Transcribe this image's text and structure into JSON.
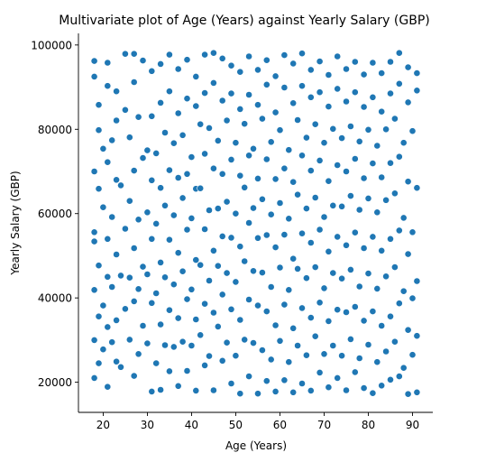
{
  "chart_data": {
    "type": "scatter",
    "title": "Multivariate plot of Age (Years) against Yearly Salary (GBP)",
    "xlabel": "Age (Years)",
    "ylabel": "Yearly Salary (GBP)",
    "xlim": [
      14.4,
      94.6
    ],
    "ylim": [
      12850,
      102750
    ],
    "xticks": [
      20,
      30,
      40,
      50,
      60,
      70,
      80,
      90
    ],
    "yticks": [
      20000,
      40000,
      60000,
      80000,
      100000
    ],
    "xtick_labels": [
      "20",
      "30",
      "40",
      "50",
      "60",
      "70",
      "80",
      "90"
    ],
    "ytick_labels": [
      "20000",
      "40000",
      "60000",
      "80000",
      "100000"
    ],
    "grid": false,
    "legend": "none",
    "marker_color": "#1f77b4",
    "points": [
      [
        18,
        96200
      ],
      [
        18,
        92500
      ],
      [
        19,
        85800
      ],
      [
        19,
        79800
      ],
      [
        18,
        70000
      ],
      [
        19,
        65900
      ],
      [
        18,
        55600
      ],
      [
        18,
        53400
      ],
      [
        19,
        47700
      ],
      [
        18,
        41900
      ],
      [
        19,
        35600
      ],
      [
        18,
        30000
      ],
      [
        19,
        24500
      ],
      [
        18,
        21000
      ],
      [
        21,
        95800
      ],
      [
        21,
        90300
      ],
      [
        20,
        75400
      ],
      [
        21,
        72200
      ],
      [
        20,
        61500
      ],
      [
        21,
        54000
      ],
      [
        21,
        45000
      ],
      [
        20,
        38200
      ],
      [
        21,
        33100
      ],
      [
        20,
        27800
      ],
      [
        21,
        18900
      ],
      [
        23,
        89000
      ],
      [
        23,
        82100
      ],
      [
        22,
        77400
      ],
      [
        23,
        68000
      ],
      [
        22,
        59200
      ],
      [
        23,
        50300
      ],
      [
        22,
        42600
      ],
      [
        23,
        34700
      ],
      [
        22,
        29500
      ],
      [
        23,
        24900
      ],
      [
        25,
        97900
      ],
      [
        25,
        84600
      ],
      [
        24,
        66700
      ],
      [
        25,
        56400
      ],
      [
        24,
        45300
      ],
      [
        25,
        37400
      ],
      [
        24,
        23600
      ],
      [
        27,
        97900
      ],
      [
        27,
        91200
      ],
      [
        26,
        78100
      ],
      [
        27,
        70200
      ],
      [
        26,
        63000
      ],
      [
        27,
        51800
      ],
      [
        26,
        44800
      ],
      [
        27,
        39200
      ],
      [
        26,
        30100
      ],
      [
        27,
        21500
      ],
      [
        29,
        96300
      ],
      [
        28,
        82900
      ],
      [
        29,
        73200
      ],
      [
        28,
        58600
      ],
      [
        29,
        47400
      ],
      [
        28,
        42100
      ],
      [
        29,
        33400
      ],
      [
        28,
        26700
      ],
      [
        31,
        93800
      ],
      [
        31,
        83100
      ],
      [
        30,
        75000
      ],
      [
        31,
        67900
      ],
      [
        30,
        60300
      ],
      [
        31,
        54000
      ],
      [
        30,
        45600
      ],
      [
        31,
        38800
      ],
      [
        30,
        29200
      ],
      [
        31,
        17800
      ],
      [
        33,
        95500
      ],
      [
        33,
        86300
      ],
      [
        32,
        74300
      ],
      [
        33,
        66100
      ],
      [
        32,
        57600
      ],
      [
        33,
        48400
      ],
      [
        32,
        41100
      ],
      [
        33,
        33700
      ],
      [
        32,
        24500
      ],
      [
        33,
        18200
      ],
      [
        35,
        97700
      ],
      [
        35,
        89000
      ],
      [
        34,
        79200
      ],
      [
        35,
        70300
      ],
      [
        34,
        61900
      ],
      [
        35,
        53800
      ],
      [
        34,
        44900
      ],
      [
        35,
        37100
      ],
      [
        34,
        28800
      ],
      [
        35,
        22600
      ],
      [
        37,
        94300
      ],
      [
        37,
        83800
      ],
      [
        36,
        76700
      ],
      [
        37,
        68500
      ],
      [
        36,
        59600
      ],
      [
        37,
        50700
      ],
      [
        36,
        43200
      ],
      [
        37,
        35200
      ],
      [
        36,
        28400
      ],
      [
        37,
        19100
      ],
      [
        39,
        96500
      ],
      [
        39,
        87300
      ],
      [
        38,
        78600
      ],
      [
        39,
        69400
      ],
      [
        38,
        63700
      ],
      [
        39,
        56200
      ],
      [
        38,
        46300
      ],
      [
        39,
        39700
      ],
      [
        38,
        29600
      ],
      [
        39,
        22700
      ],
      [
        41,
        92500
      ],
      [
        41,
        85500
      ],
      [
        40,
        73400
      ],
      [
        41,
        65900
      ],
      [
        40,
        58900
      ],
      [
        41,
        49000
      ],
      [
        40,
        42000
      ],
      [
        41,
        34900
      ],
      [
        40,
        28700
      ],
      [
        41,
        18000
      ],
      [
        43,
        97700
      ],
      [
        43,
        88600
      ],
      [
        42,
        81200
      ],
      [
        43,
        74200
      ],
      [
        42,
        66000
      ],
      [
        43,
        56300
      ],
      [
        42,
        47800
      ],
      [
        43,
        38600
      ],
      [
        42,
        31200
      ],
      [
        43,
        24000
      ],
      [
        45,
        98100
      ],
      [
        45,
        91000
      ],
      [
        44,
        80300
      ],
      [
        45,
        70700
      ],
      [
        44,
        60800
      ],
      [
        45,
        51200
      ],
      [
        44,
        44100
      ],
      [
        45,
        36500
      ],
      [
        44,
        26200
      ],
      [
        45,
        18100
      ],
      [
        47,
        96800
      ],
      [
        47,
        86800
      ],
      [
        46,
        77300
      ],
      [
        47,
        69400
      ],
      [
        46,
        61200
      ],
      [
        47,
        54600
      ],
      [
        46,
        47600
      ],
      [
        47,
        40800
      ],
      [
        46,
        33200
      ],
      [
        47,
        25100
      ],
      [
        49,
        95100
      ],
      [
        49,
        88500
      ],
      [
        48,
        82100
      ],
      [
        49,
        72800
      ],
      [
        48,
        62800
      ],
      [
        49,
        54300
      ],
      [
        48,
        45900
      ],
      [
        49,
        37300
      ],
      [
        48,
        29400
      ],
      [
        49,
        19700
      ],
      [
        51,
        93600
      ],
      [
        51,
        84800
      ],
      [
        50,
        76800
      ],
      [
        51,
        69000
      ],
      [
        50,
        60000
      ],
      [
        51,
        52200
      ],
      [
        50,
        43800
      ],
      [
        51,
        34800
      ],
      [
        50,
        26300
      ],
      [
        51,
        17300
      ],
      [
        53,
        97300
      ],
      [
        53,
        88200
      ],
      [
        52,
        81300
      ],
      [
        53,
        73800
      ],
      [
        52,
        66200
      ],
      [
        53,
        57800
      ],
      [
        52,
        48700
      ],
      [
        53,
        39600
      ],
      [
        52,
        30100
      ],
      [
        53,
        21400
      ],
      [
        55,
        94100
      ],
      [
        55,
        85800
      ],
      [
        54,
        75400
      ],
      [
        55,
        68300
      ],
      [
        54,
        61300
      ],
      [
        55,
        54200
      ],
      [
        54,
        46400
      ],
      [
        55,
        38200
      ],
      [
        54,
        29300
      ],
      [
        55,
        17300
      ],
      [
        57,
        96400
      ],
      [
        57,
        90600
      ],
      [
        56,
        82500
      ],
      [
        57,
        72900
      ],
      [
        56,
        63400
      ],
      [
        57,
        54900
      ],
      [
        56,
        46000
      ],
      [
        57,
        36800
      ],
      [
        56,
        27600
      ],
      [
        57,
        20300
      ],
      [
        59,
        92600
      ],
      [
        59,
        84000
      ],
      [
        58,
        77000
      ],
      [
        59,
        68200
      ],
      [
        58,
        59800
      ],
      [
        59,
        52000
      ],
      [
        58,
        42600
      ],
      [
        59,
        33500
      ],
      [
        58,
        25400
      ],
      [
        59,
        17800
      ],
      [
        61,
        97600
      ],
      [
        61,
        89900
      ],
      [
        60,
        79800
      ],
      [
        61,
        70700
      ],
      [
        60,
        62500
      ],
      [
        61,
        55000
      ],
      [
        60,
        47200
      ],
      [
        61,
        38400
      ],
      [
        60,
        29800
      ],
      [
        61,
        20500
      ],
      [
        63,
        95600
      ],
      [
        63,
        86200
      ],
      [
        62,
        75100
      ],
      [
        63,
        67500
      ],
      [
        62,
        58800
      ],
      [
        63,
        49300
      ],
      [
        62,
        41900
      ],
      [
        63,
        32800
      ],
      [
        62,
        24800
      ],
      [
        63,
        17600
      ],
      [
        65,
        98000
      ],
      [
        65,
        90300
      ],
      [
        64,
        82200
      ],
      [
        65,
        73800
      ],
      [
        64,
        64500
      ],
      [
        65,
        55300
      ],
      [
        64,
        46900
      ],
      [
        65,
        37600
      ],
      [
        64,
        28700
      ],
      [
        65,
        19700
      ],
      [
        67,
        94100
      ],
      [
        67,
        87600
      ],
      [
        66,
        78000
      ],
      [
        67,
        70200
      ],
      [
        66,
        61200
      ],
      [
        67,
        53100
      ],
      [
        66,
        44700
      ],
      [
        67,
        35300
      ],
      [
        66,
        26400
      ],
      [
        67,
        18000
      ],
      [
        69,
        96100
      ],
      [
        69,
        88800
      ],
      [
        68,
        81200
      ],
      [
        69,
        72600
      ],
      [
        68,
        63800
      ],
      [
        69,
        56200
      ],
      [
        68,
        47300
      ],
      [
        69,
        38900
      ],
      [
        68,
        30900
      ],
      [
        69,
        22300
      ],
      [
        71,
        92900
      ],
      [
        71,
        85400
      ],
      [
        70,
        76800
      ],
      [
        71,
        67700
      ],
      [
        70,
        59200
      ],
      [
        71,
        51000
      ],
      [
        70,
        42300
      ],
      [
        71,
        34500
      ],
      [
        70,
        26700
      ],
      [
        71,
        18800
      ],
      [
        73,
        97300
      ],
      [
        73,
        89600
      ],
      [
        72,
        80100
      ],
      [
        73,
        71500
      ],
      [
        72,
        61900
      ],
      [
        73,
        54500
      ],
      [
        72,
        45900
      ],
      [
        73,
        37200
      ],
      [
        72,
        28700
      ],
      [
        73,
        21000
      ],
      [
        75,
        94300
      ],
      [
        75,
        86600
      ],
      [
        74,
        77900
      ],
      [
        75,
        70000
      ],
      [
        74,
        61700
      ],
      [
        75,
        52500
      ],
      [
        74,
        44600
      ],
      [
        75,
        36600
      ],
      [
        74,
        26300
      ],
      [
        75,
        18100
      ],
      [
        77,
        96000
      ],
      [
        77,
        88800
      ],
      [
        76,
        80700
      ],
      [
        77,
        73000
      ],
      [
        76,
        64200
      ],
      [
        77,
        55500
      ],
      [
        76,
        46700
      ],
      [
        77,
        37900
      ],
      [
        76,
        30200
      ],
      [
        77,
        22400
      ],
      [
        79,
        93000
      ],
      [
        79,
        85300
      ],
      [
        78,
        77100
      ],
      [
        79,
        68400
      ],
      [
        78,
        60900
      ],
      [
        79,
        51800
      ],
      [
        78,
        42700
      ],
      [
        79,
        34600
      ],
      [
        78,
        25700
      ],
      [
        79,
        18600
      ],
      [
        81,
        95800
      ],
      [
        81,
        87600
      ],
      [
        80,
        79900
      ],
      [
        81,
        71900
      ],
      [
        80,
        63600
      ],
      [
        81,
        54500
      ],
      [
        80,
        45800
      ],
      [
        81,
        36800
      ],
      [
        80,
        28900
      ],
      [
        81,
        17400
      ],
      [
        83,
        93300
      ],
      [
        83,
        84200
      ],
      [
        82,
        76100
      ],
      [
        83,
        68600
      ],
      [
        82,
        60300
      ],
      [
        83,
        51200
      ],
      [
        82,
        42200
      ],
      [
        83,
        33400
      ],
      [
        82,
        24800
      ],
      [
        83,
        19200
      ],
      [
        85,
        96000
      ],
      [
        85,
        88500
      ],
      [
        84,
        80000
      ],
      [
        85,
        72000
      ],
      [
        84,
        63200
      ],
      [
        85,
        54000
      ],
      [
        84,
        45100
      ],
      [
        85,
        35600
      ],
      [
        84,
        27300
      ],
      [
        85,
        20600
      ],
      [
        87,
        98100
      ],
      [
        87,
        90800
      ],
      [
        86,
        82500
      ],
      [
        87,
        73500
      ],
      [
        86,
        64800
      ],
      [
        87,
        56000
      ],
      [
        86,
        47300
      ],
      [
        87,
        38700
      ],
      [
        86,
        29600
      ],
      [
        87,
        21400
      ],
      [
        89,
        94700
      ],
      [
        89,
        86400
      ],
      [
        88,
        76800
      ],
      [
        89,
        67600
      ],
      [
        88,
        59000
      ],
      [
        89,
        50400
      ],
      [
        88,
        41600
      ],
      [
        89,
        32400
      ],
      [
        88,
        23400
      ],
      [
        89,
        17200
      ],
      [
        91,
        93300
      ],
      [
        91,
        89200
      ],
      [
        90,
        79600
      ],
      [
        91,
        66100
      ],
      [
        90,
        55600
      ],
      [
        91,
        44000
      ],
      [
        90,
        39900
      ],
      [
        91,
        31000
      ],
      [
        90,
        26500
      ],
      [
        91,
        17600
      ]
    ]
  }
}
